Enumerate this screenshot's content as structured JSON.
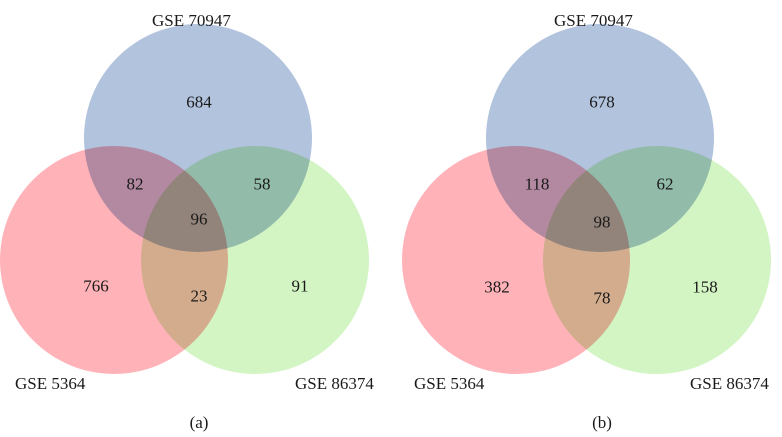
{
  "colors": {
    "set_a": "#b2c3de",
    "set_b": "#ffb3b8",
    "set_c": "#d3f5c4"
  },
  "panels": [
    {
      "caption": "(a)",
      "set_labels": {
        "top": "GSE 70947",
        "left": "GSE 5364",
        "right": "GSE 86374"
      },
      "regions": {
        "top_only": "684",
        "left_only": "766",
        "right_only": "91",
        "top_left": "82",
        "top_right": "58",
        "left_right": "23",
        "all": "96"
      }
    },
    {
      "caption": "(b)",
      "set_labels": {
        "top": "GSE 70947",
        "left": "GSE 5364",
        "right": "GSE 86374"
      },
      "regions": {
        "top_only": "678",
        "left_only": "382",
        "right_only": "158",
        "top_left": "118",
        "top_right": "62",
        "left_right": "78",
        "all": "98"
      }
    }
  ]
}
